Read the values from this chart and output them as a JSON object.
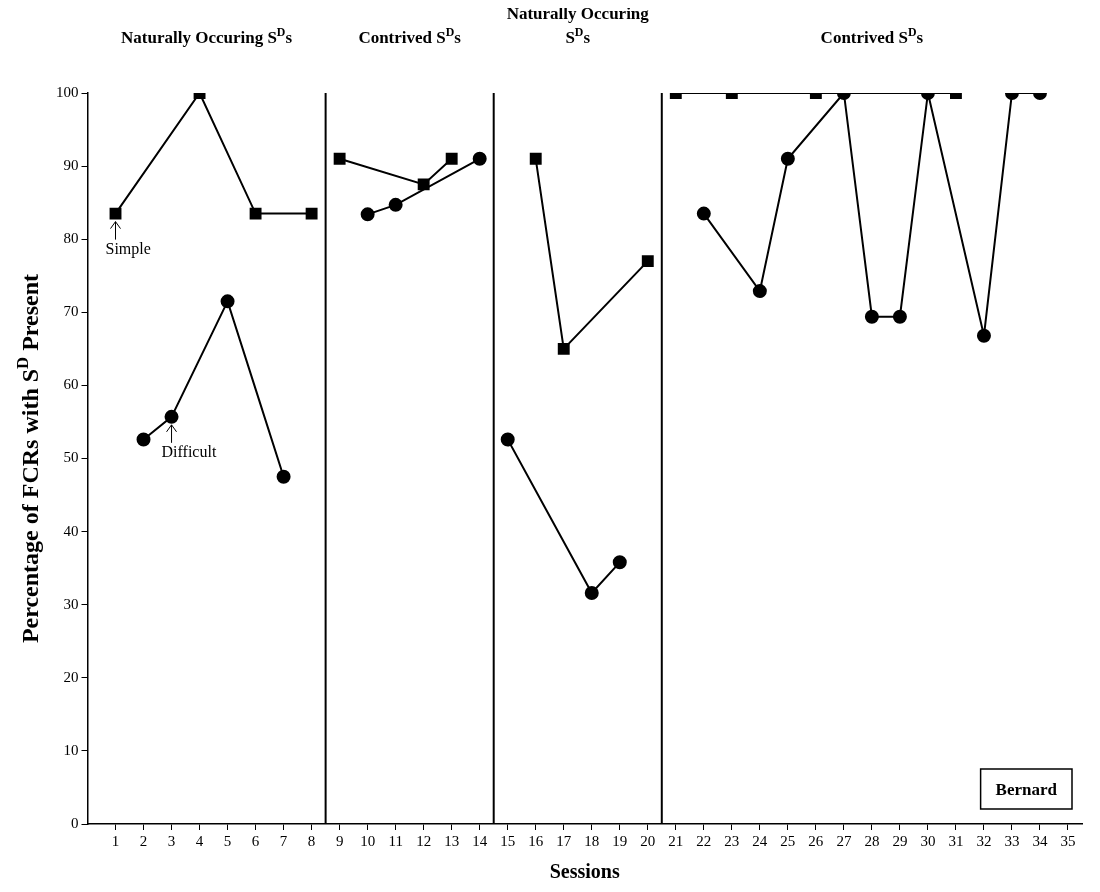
{
  "chart_data": {
    "type": "line",
    "xlabel": "Sessions",
    "ylabel": "Percentage of FCRs with S$^{D}$ Present",
    "xlim": [
      0,
      35.5
    ],
    "xticks": [
      1,
      2,
      3,
      4,
      5,
      6,
      7,
      8,
      9,
      10,
      11,
      12,
      13,
      14,
      15,
      16,
      17,
      18,
      19,
      20,
      21,
      22,
      23,
      24,
      25,
      26,
      27,
      28,
      29,
      30,
      31,
      32,
      33,
      34,
      35
    ],
    "ylim": [
      0,
      100
    ],
    "yticks": [
      0,
      10,
      20,
      30,
      40,
      50,
      60,
      70,
      80,
      90,
      100
    ],
    "grid": false,
    "legend": false,
    "series": [
      {
        "color": "#000000",
        "marker": "square",
        "x": [
          1,
          4,
          6,
          8
        ],
        "values": [
          83.5,
          100,
          83.5,
          83.5
        ]
      },
      {
        "color": "#000000",
        "marker": "square",
        "x": [
          9,
          12,
          13
        ],
        "values": [
          91,
          87.5,
          91
        ]
      },
      {
        "color": "#000000",
        "marker": "square",
        "x": [
          16,
          17,
          20
        ],
        "values": [
          91,
          65,
          77
        ]
      },
      {
        "color": "#000000",
        "marker": "square",
        "x": [
          21,
          23,
          26,
          31
        ],
        "values": [
          100,
          100,
          100,
          100
        ]
      },
      {
        "color": "#000000",
        "marker": "circle",
        "x": [
          2,
          3,
          5,
          7
        ],
        "values": [
          52.6,
          55.7,
          71.5,
          47.5
        ]
      },
      {
        "color": "#000000",
        "marker": "circle",
        "x": [
          10,
          11,
          14
        ],
        "values": [
          83.4,
          84.7,
          91
        ]
      },
      {
        "color": "#000000",
        "marker": "circle",
        "x": [
          15,
          18,
          19
        ],
        "values": [
          52.6,
          31.6,
          35.8
        ]
      },
      {
        "color": "#000000",
        "marker": "circle",
        "x": [
          22,
          24,
          25,
          27,
          28,
          29,
          30,
          32,
          33,
          34
        ],
        "values": [
          83.5,
          72.9,
          91,
          100,
          69.4,
          69.4,
          100,
          66.8,
          100,
          100
        ]
      }
    ],
    "ref_lines": [
      {
        "axis": "x",
        "value": 8.5,
        "color": "#000000"
      },
      {
        "axis": "x",
        "value": 14.5,
        "color": "#000000"
      },
      {
        "axis": "x",
        "value": 20.5,
        "color": "#000000"
      }
    ],
    "annotations": [
      "Naturally Occuring S$^{D}$s",
      "Contrived S$^{D}$s",
      "Naturally Occuring\nS$^{D}$s",
      "Contrived S$^{D}$s",
      {
        "text": "Simple",
        "x": 1,
        "y": 83.5
      },
      {
        "text": "Difficult",
        "x": 3,
        "y": 55.7
      },
      "Bernard"
    ]
  }
}
